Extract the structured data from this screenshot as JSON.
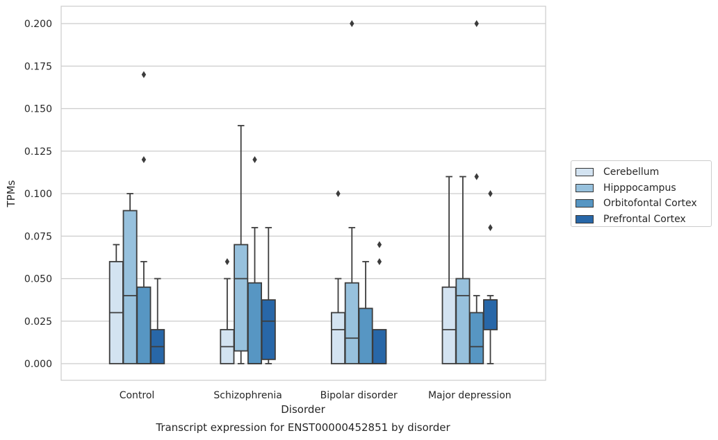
{
  "chart_data": {
    "type": "box",
    "categories": [
      "Control",
      "Schizophrenia",
      "Bipolar disorder",
      "Major depression"
    ],
    "xlabel": "Disorder",
    "ylabel": "TPMs",
    "ylim": [
      -0.01,
      0.21
    ],
    "yticks": [
      "0.000",
      "0.025",
      "0.050",
      "0.075",
      "0.100",
      "0.125",
      "0.150",
      "0.175",
      "0.200"
    ],
    "grid": true,
    "legend_position": "right",
    "series": [
      {
        "name": "Cerebellum",
        "color": "#d3e3f1",
        "boxes": [
          {
            "whisker_low": 0.0,
            "q1": 0.0,
            "median": 0.03,
            "q3": 0.06,
            "whisker_high": 0.07,
            "outliers": []
          },
          {
            "whisker_low": 0.0,
            "q1": 0.0,
            "median": 0.01,
            "q3": 0.02,
            "whisker_high": 0.05,
            "outliers": [
              0.06
            ]
          },
          {
            "whisker_low": 0.0,
            "q1": 0.0,
            "median": 0.02,
            "q3": 0.03,
            "whisker_high": 0.05,
            "outliers": [
              0.1
            ]
          },
          {
            "whisker_low": 0.0,
            "q1": 0.0,
            "median": 0.02,
            "q3": 0.045,
            "whisker_high": 0.11,
            "outliers": []
          }
        ]
      },
      {
        "name": "Hipppocampus",
        "color": "#97c1dd",
        "boxes": [
          {
            "whisker_low": 0.0,
            "q1": 0.0,
            "median": 0.04,
            "q3": 0.09,
            "whisker_high": 0.1,
            "outliers": []
          },
          {
            "whisker_low": 0.0,
            "q1": 0.0075,
            "median": 0.05,
            "q3": 0.07,
            "whisker_high": 0.14,
            "outliers": []
          },
          {
            "whisker_low": 0.0,
            "q1": 0.0,
            "median": 0.015,
            "q3": 0.0475,
            "whisker_high": 0.08,
            "outliers": [
              0.2
            ]
          },
          {
            "whisker_low": 0.0,
            "q1": 0.0,
            "median": 0.04,
            "q3": 0.05,
            "whisker_high": 0.11,
            "outliers": []
          }
        ]
      },
      {
        "name": "Orbitofontal Cortex",
        "color": "#5796c3",
        "boxes": [
          {
            "whisker_low": 0.0,
            "q1": 0.0,
            "median": 0.0,
            "q3": 0.045,
            "whisker_high": 0.06,
            "outliers": [
              0.12,
              0.17
            ]
          },
          {
            "whisker_low": 0.0,
            "q1": 0.0,
            "median": 0.0,
            "q3": 0.0475,
            "whisker_high": 0.08,
            "outliers": [
              0.12
            ]
          },
          {
            "whisker_low": 0.0,
            "q1": 0.0,
            "median": 0.0,
            "q3": 0.0325,
            "whisker_high": 0.06,
            "outliers": []
          },
          {
            "whisker_low": 0.0,
            "q1": 0.0,
            "median": 0.01,
            "q3": 0.03,
            "whisker_high": 0.04,
            "outliers": [
              0.11,
              0.2
            ]
          }
        ]
      },
      {
        "name": "Prefrontal Cortex",
        "color": "#2867a8",
        "boxes": [
          {
            "whisker_low": 0.0,
            "q1": 0.0,
            "median": 0.01,
            "q3": 0.02,
            "whisker_high": 0.05,
            "outliers": []
          },
          {
            "whisker_low": 0.0,
            "q1": 0.0025,
            "median": 0.025,
            "q3": 0.0375,
            "whisker_high": 0.08,
            "outliers": []
          },
          {
            "whisker_low": 0.0,
            "q1": 0.0,
            "median": 0.0,
            "q3": 0.02,
            "whisker_high": 0.02,
            "outliers": [
              0.06,
              0.07
            ]
          },
          {
            "whisker_low": 0.0,
            "q1": 0.02,
            "median": 0.0375,
            "q3": 0.0375,
            "whisker_high": 0.04,
            "outliers": [
              0.08,
              0.1
            ]
          }
        ]
      }
    ]
  },
  "caption": "Transcript expression for ENST00000452851 by disorder"
}
